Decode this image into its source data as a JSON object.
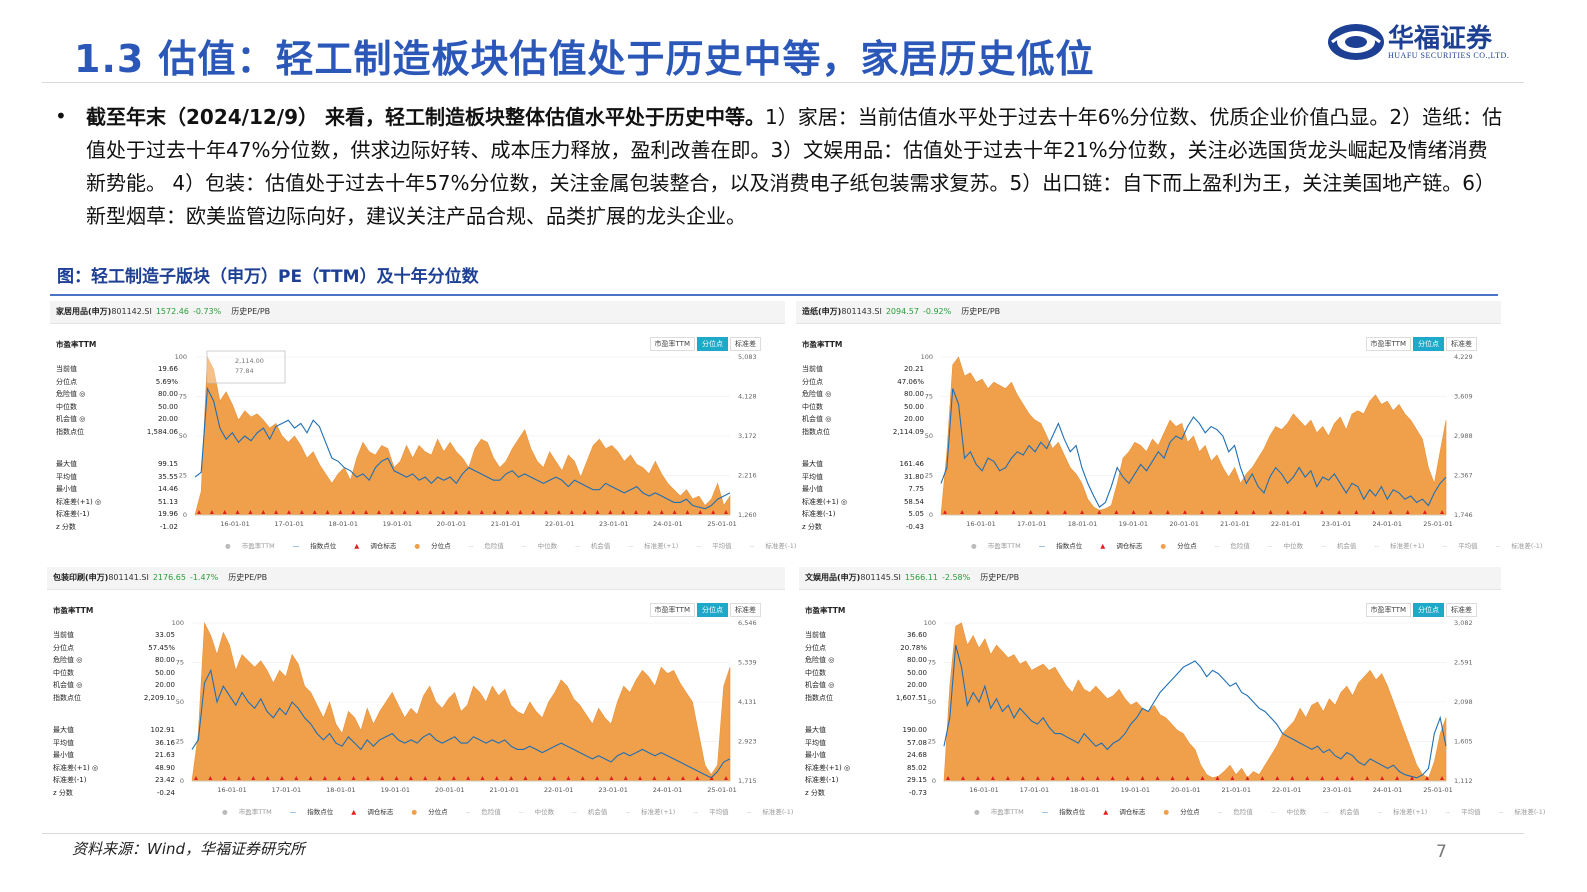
{
  "slide": {
    "title": "1.3 估值：轻工制造板块估值处于历史中等，家居历史低位",
    "logo_cn": "华福证券",
    "logo_en": "HUAFU SECURITIES CO.,LTD.",
    "para_bold": "截至年末（2024/12/9） 来看，轻工制造板块整体估值水平处于历史中等。",
    "para_rest": "1）家居：当前估值水平处于过去十年6%分位数、优质企业价值凸显。2）造纸：估值处于过去十年47%分位数，供求边际好转、成本压力释放，盈利改善在即。3）文娱用品：估值处于过去十年21%分位数，关注必选国货龙头崛起及情绪消费新势能。 4）包装：估值处于过去十年57%分位数，关注金属包装整合，以及消费电子纸包装需求复苏。5）出口链：自下而上盈利为王，关注美国地产链。6）新型烟草：欧美监管边际向好，建议关注产品合规、品类扩展的龙头企业。",
    "fig_title": "图：轻工制造子版块（申万）PE（TTM）及十年分位数",
    "source": "资料来源：Wind，华福证券研究所",
    "page": "7"
  },
  "common": {
    "subtitle": "市盈率TTM",
    "hist": "历史PE/PB",
    "tabs": [
      "市盈率TTM",
      "分位点",
      "标准差"
    ],
    "stat_labels_top": [
      "当前值",
      "分位点",
      "危险值 ◎",
      "中位数",
      "机会值 ◎",
      "指数点位"
    ],
    "stat_labels_bot": [
      "最大值",
      "平均值",
      "最小值",
      "标准差(+1) ◎",
      "标准差(-1)",
      "z 分数"
    ],
    "legend": [
      "市盈率TTM",
      "指数点位",
      "调仓标志",
      "分位点",
      "危险值",
      "中位数",
      "机会值",
      "标准差(+1)",
      "平均值",
      "标准差(-1)"
    ],
    "x_ticks": [
      "16-01-01",
      "17-01-01",
      "18-01-01",
      "19-01-01",
      "20-01-01",
      "21-01-01",
      "22-01-01",
      "23-01-01",
      "24-01-01",
      "25-01-01"
    ],
    "y_left": [
      "100",
      "75",
      "50",
      "25",
      "0"
    ],
    "colors": {
      "area": "#f0a04b",
      "line": "#1f6fb5",
      "marker": "#e02020",
      "tab_on": "#1fa9c9"
    }
  },
  "chart_data": [
    {
      "type": "area",
      "name": "家居用品(申万)",
      "code": "801142.SI",
      "price": "1572.46",
      "change": "-0.73%",
      "stats_top": [
        "19.66",
        "5.69%",
        "80.00",
        "50.00",
        "20.00",
        "1,584.06"
      ],
      "stats_bot": [
        "99.15",
        "35.55",
        "14.46",
        "51.13",
        "19.96",
        "-1.02"
      ],
      "y_right": [
        "5,083",
        "4,128",
        "3,172",
        "2,216",
        "1,260"
      ],
      "tooltip": [
        "2,114.00",
        "77.84"
      ],
      "ylim": [
        0,
        100
      ],
      "percentile": [
        0,
        15,
        100,
        92,
        72,
        78,
        70,
        60,
        66,
        62,
        64,
        60,
        55,
        58,
        50,
        46,
        50,
        44,
        36,
        40,
        32,
        26,
        20,
        26,
        30,
        22,
        36,
        46,
        40,
        38,
        44,
        42,
        30,
        34,
        44,
        36,
        44,
        40,
        38,
        48,
        40,
        46,
        40,
        36,
        30,
        42,
        48,
        46,
        36,
        30,
        34,
        42,
        48,
        54,
        42,
        34,
        30,
        40,
        34,
        28,
        38,
        34,
        24,
        34,
        44,
        48,
        42,
        44,
        40,
        34,
        38,
        32,
        30,
        26,
        34,
        26,
        20,
        16,
        12,
        16,
        10,
        12,
        6,
        10,
        20,
        6,
        12
      ],
      "index": [
        24,
        27,
        80,
        72,
        55,
        48,
        52,
        46,
        50,
        47,
        52,
        55,
        48,
        56,
        58,
        60,
        55,
        58,
        52,
        60,
        56,
        46,
        36,
        34,
        30,
        28,
        24,
        26,
        22,
        30,
        34,
        36,
        28,
        26,
        24,
        26,
        22,
        24,
        20,
        24,
        22,
        24,
        20,
        26,
        30,
        28,
        26,
        24,
        22,
        22,
        26,
        28,
        24,
        26,
        24,
        22,
        20,
        22,
        24,
        22,
        18,
        22,
        20,
        18,
        16,
        16,
        20,
        18,
        16,
        14,
        16,
        18,
        14,
        12,
        14,
        12,
        10,
        8,
        8,
        10,
        6,
        5,
        4,
        6,
        10,
        12,
        14
      ],
      "markers_count": 42
    },
    {
      "type": "area",
      "name": "造纸(申万)",
      "code": "801143.SI",
      "price": "2094.57",
      "change": "-0.92%",
      "stats_top": [
        "20.21",
        "47.06%",
        "80.00",
        "50.00",
        "20.00",
        "2,114.09"
      ],
      "stats_bot": [
        "161.46",
        "31.80",
        "7.75",
        "58.54",
        "5.05",
        "-0.43"
      ],
      "y_right": [
        "4,229",
        "3,609",
        "2,988",
        "2,367",
        "1,746"
      ],
      "tooltip": [],
      "ylim": [
        0,
        100
      ],
      "percentile": [
        0,
        40,
        95,
        100,
        88,
        90,
        84,
        86,
        80,
        84,
        82,
        80,
        84,
        76,
        70,
        64,
        60,
        58,
        50,
        42,
        46,
        38,
        30,
        26,
        20,
        10,
        5,
        3,
        4,
        6,
        20,
        36,
        40,
        46,
        44,
        40,
        48,
        44,
        52,
        60,
        56,
        58,
        46,
        50,
        40,
        44,
        34,
        38,
        30,
        24,
        30,
        20,
        26,
        30,
        36,
        42,
        50,
        56,
        54,
        58,
        64,
        60,
        56,
        60,
        52,
        56,
        50,
        58,
        62,
        54,
        64,
        66,
        64,
        72,
        76,
        70,
        72,
        66,
        70,
        64,
        60,
        54,
        48,
        30,
        20,
        40,
        60
      ],
      "index": [
        20,
        30,
        80,
        70,
        36,
        40,
        32,
        28,
        36,
        34,
        28,
        30,
        36,
        40,
        38,
        44,
        40,
        46,
        42,
        50,
        58,
        48,
        40,
        44,
        30,
        20,
        12,
        5,
        8,
        18,
        30,
        24,
        20,
        26,
        32,
        28,
        34,
        40,
        36,
        46,
        50,
        48,
        56,
        62,
        58,
        52,
        56,
        54,
        50,
        40,
        44,
        30,
        20,
        26,
        18,
        14,
        24,
        30,
        26,
        20,
        24,
        30,
        24,
        28,
        18,
        24,
        22,
        26,
        20,
        14,
        20,
        18,
        10,
        16,
        12,
        18,
        10,
        16,
        14,
        10,
        12,
        8,
        10,
        6,
        14,
        20,
        24
      ],
      "markers_count": 30
    },
    {
      "type": "area",
      "name": "包装印刷(申万)",
      "code": "801141.SI",
      "price": "2176.65",
      "change": "-1.47%",
      "stats_top": [
        "33.05",
        "57.45%",
        "80.00",
        "50.00",
        "20.00",
        "2,209.10"
      ],
      "stats_bot": [
        "102.91",
        "36.16",
        "21.63",
        "48.90",
        "23.42",
        "-0.24"
      ],
      "y_right": [
        "6,546",
        "5,339",
        "4,131",
        "2,923",
        "1,715"
      ],
      "tooltip": [],
      "ylim": [
        0,
        100
      ],
      "percentile": [
        0,
        30,
        100,
        92,
        80,
        94,
        86,
        70,
        80,
        76,
        72,
        76,
        70,
        62,
        70,
        66,
        80,
        74,
        60,
        56,
        48,
        40,
        50,
        36,
        30,
        44,
        40,
        32,
        46,
        36,
        44,
        50,
        56,
        48,
        40,
        46,
        42,
        54,
        60,
        50,
        46,
        52,
        56,
        44,
        48,
        60,
        56,
        50,
        60,
        54,
        58,
        48,
        44,
        42,
        50,
        44,
        40,
        50,
        56,
        64,
        60,
        52,
        48,
        42,
        36,
        46,
        40,
        36,
        50,
        60,
        56,
        64,
        70,
        66,
        60,
        72,
        68,
        70,
        62,
        56,
        50,
        30,
        10,
        4,
        10,
        60,
        72
      ],
      "index": [
        20,
        26,
        62,
        70,
        50,
        60,
        54,
        48,
        56,
        50,
        46,
        52,
        44,
        40,
        46,
        42,
        50,
        46,
        40,
        36,
        30,
        26,
        30,
        24,
        22,
        28,
        24,
        20,
        26,
        22,
        26,
        28,
        30,
        26,
        24,
        26,
        24,
        28,
        30,
        26,
        24,
        26,
        28,
        24,
        24,
        28,
        26,
        24,
        26,
        24,
        26,
        22,
        20,
        20,
        22,
        20,
        18,
        20,
        22,
        24,
        22,
        20,
        18,
        16,
        14,
        16,
        14,
        12,
        16,
        18,
        16,
        18,
        20,
        18,
        16,
        18,
        16,
        14,
        12,
        10,
        8,
        6,
        4,
        2,
        6,
        12,
        14
      ],
      "markers_count": 38
    },
    {
      "type": "area",
      "name": "文娱用品(申万)",
      "code": "801145.SI",
      "price": "1566.11",
      "change": "-2.58%",
      "stats_top": [
        "36.60",
        "20.78%",
        "80.00",
        "50.00",
        "20.00",
        "1,607.51"
      ],
      "stats_bot": [
        "190.00",
        "57.08",
        "24.68",
        "85.02",
        "29.15",
        "-0.73"
      ],
      "y_right": [
        "3,082",
        "2,591",
        "2,098",
        "1,605",
        "1,112"
      ],
      "tooltip": [],
      "ylim": [
        0,
        100
      ],
      "percentile": [
        0,
        60,
        98,
        100,
        86,
        92,
        84,
        90,
        80,
        86,
        82,
        78,
        80,
        74,
        76,
        70,
        72,
        74,
        70,
        72,
        66,
        60,
        56,
        64,
        58,
        56,
        60,
        56,
        52,
        54,
        58,
        52,
        48,
        50,
        46,
        44,
        48,
        42,
        40,
        36,
        32,
        30,
        24,
        20,
        10,
        4,
        2,
        3,
        6,
        10,
        4,
        8,
        2,
        6,
        4,
        10,
        16,
        22,
        30,
        34,
        38,
        46,
        40,
        48,
        50,
        44,
        52,
        48,
        56,
        60,
        54,
        62,
        66,
        70,
        64,
        68,
        60,
        50,
        40,
        30,
        20,
        10,
        4,
        2,
        12,
        30,
        40
      ],
      "index": [
        22,
        40,
        86,
        72,
        48,
        56,
        50,
        60,
        46,
        52,
        44,
        48,
        40,
        46,
        42,
        38,
        36,
        40,
        34,
        30,
        30,
        28,
        26,
        24,
        30,
        26,
        22,
        24,
        20,
        24,
        26,
        30,
        36,
        40,
        46,
        44,
        50,
        56,
        60,
        64,
        68,
        72,
        74,
        76,
        72,
        66,
        70,
        68,
        64,
        60,
        62,
        56,
        54,
        50,
        46,
        44,
        40,
        36,
        30,
        28,
        26,
        24,
        22,
        20,
        22,
        18,
        20,
        16,
        14,
        18,
        16,
        12,
        10,
        14,
        12,
        10,
        8,
        10,
        6,
        4,
        3,
        2,
        4,
        8,
        30,
        40,
        22
      ],
      "markers_count": 34
    }
  ]
}
